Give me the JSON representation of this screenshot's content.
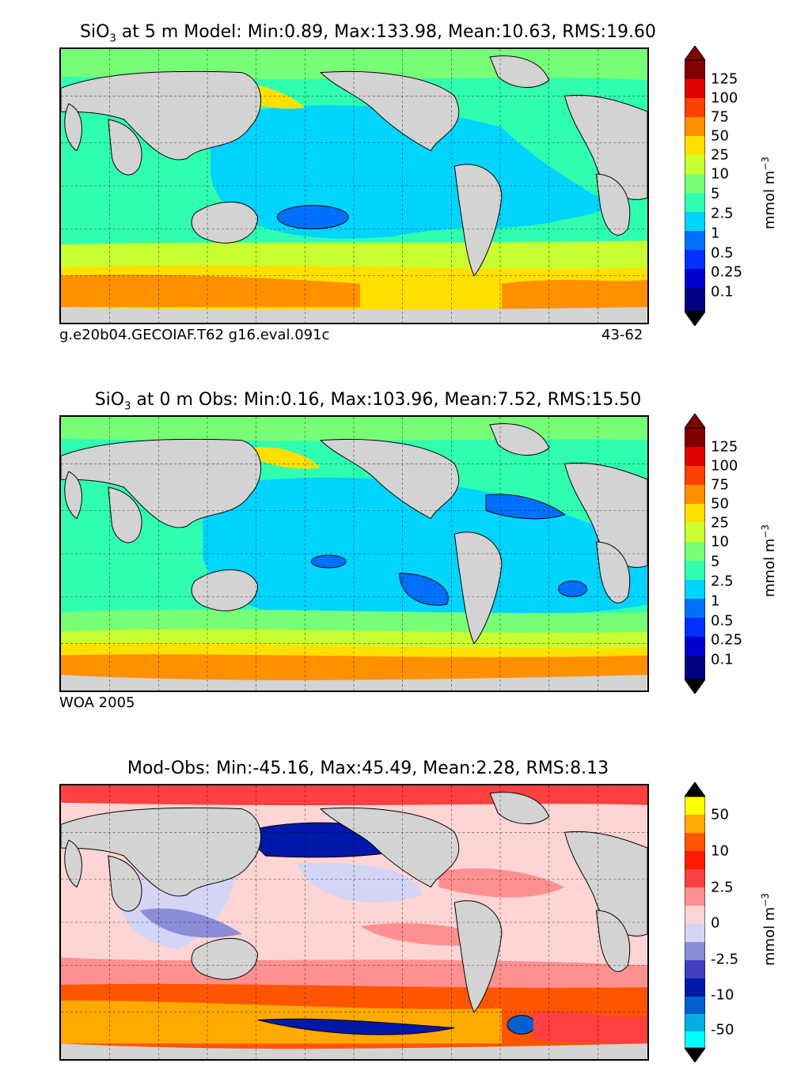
{
  "panels": [
    {
      "title_var": "SiO",
      "title_sub": "3",
      "title_rest": " at 5 m Model: Min:0.89, Max:133.98, Mean:10.63, RMS:19.60",
      "label_left": "g.e20b04.GECOIAF.T62 g16.eval.091c",
      "label_right": "43-62",
      "colorbar_ticks": [
        "125",
        "100",
        "75",
        "50",
        "25",
        "10",
        "5",
        "2.5",
        "1",
        "0.5",
        "0.25",
        "0.1"
      ],
      "colorbar_colors": [
        "#800000",
        "#e00000",
        "#ff4000",
        "#ff9000",
        "#ffe000",
        "#c8ff30",
        "#78ff78",
        "#30ffb0",
        "#00d4ff",
        "#0070ff",
        "#0030ff",
        "#0000d0",
        "#000080"
      ],
      "unit_text": "mmol m",
      "unit_exp": "−3"
    },
    {
      "title_var": "SiO",
      "title_sub": "3",
      "title_rest": " at 0 m Obs: Min:0.16, Max:103.96, Mean:7.52, RMS:15.50",
      "label_left": "WOA 2005",
      "label_right": "",
      "colorbar_ticks": [
        "125",
        "100",
        "75",
        "50",
        "25",
        "10",
        "5",
        "2.5",
        "1",
        "0.5",
        "0.25",
        "0.1"
      ],
      "colorbar_colors": [
        "#800000",
        "#e00000",
        "#ff4000",
        "#ff9000",
        "#ffe000",
        "#c8ff30",
        "#78ff78",
        "#30ffb0",
        "#00d4ff",
        "#0070ff",
        "#0030ff",
        "#0000d0",
        "#000080"
      ],
      "unit_text": "mmol m",
      "unit_exp": "−3"
    },
    {
      "title_var": "",
      "title_sub": "",
      "title_rest": "Mod-Obs: Min:-45.16, Max:45.49, Mean:2.28, RMS:8.13",
      "label_left": "",
      "label_right": "",
      "colorbar_ticks": [
        "50",
        "10",
        "2.5",
        "0",
        "-2.5",
        "-10",
        "-50"
      ],
      "colorbar_colors": [
        "#ffff00",
        "#ffaa00",
        "#ff5500",
        "#ff1a00",
        "#ff4040",
        "#ff9090",
        "#ffd4d4",
        "#d4d4f4",
        "#8c8cd8",
        "#4040c0",
        "#0018a8",
        "#0060d0",
        "#00b0e0",
        "#00ffff"
      ],
      "unit_text": "mmol m",
      "unit_exp": "−3"
    }
  ],
  "colors": {
    "land": "#d3d3d3",
    "ocean_model": "#00d4ff",
    "diff_pos": "#ffd4d4",
    "diff_neg": "#d4d4f4"
  }
}
